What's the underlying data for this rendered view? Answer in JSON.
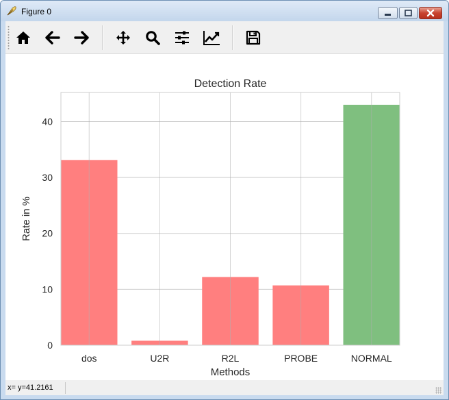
{
  "window": {
    "title": "Figure 0",
    "icon": "feather-icon"
  },
  "toolbar": {
    "buttons": [
      {
        "name": "home-button",
        "icon": "home-icon"
      },
      {
        "name": "back-button",
        "icon": "arrow-left-icon"
      },
      {
        "name": "forward-button",
        "icon": "arrow-right-icon"
      },
      {
        "name": "pan-button",
        "icon": "move-icon"
      },
      {
        "name": "zoom-button",
        "icon": "magnifier-icon"
      },
      {
        "name": "subplots-button",
        "icon": "sliders-icon"
      },
      {
        "name": "edit-axes-button",
        "icon": "line-chart-icon"
      },
      {
        "name": "save-button",
        "icon": "floppy-disk-icon"
      }
    ]
  },
  "status": {
    "coordinates": "x= y=41.2161"
  },
  "chart_data": {
    "type": "bar",
    "title": "Detection Rate",
    "xlabel": "Methods",
    "ylabel": "Rate in %",
    "categories": [
      "dos",
      "U2R",
      "R2L",
      "PROBE",
      "NORMAL"
    ],
    "values": [
      33.1,
      0.8,
      12.2,
      10.7,
      43.0
    ],
    "colors": [
      "#ff7f7f",
      "#ff7f7f",
      "#ff7f7f",
      "#ff7f7f",
      "#7fbf7f"
    ],
    "ylim": [
      0,
      45.2
    ],
    "yticks": [
      0,
      10,
      20,
      30,
      40
    ],
    "grid": true
  }
}
